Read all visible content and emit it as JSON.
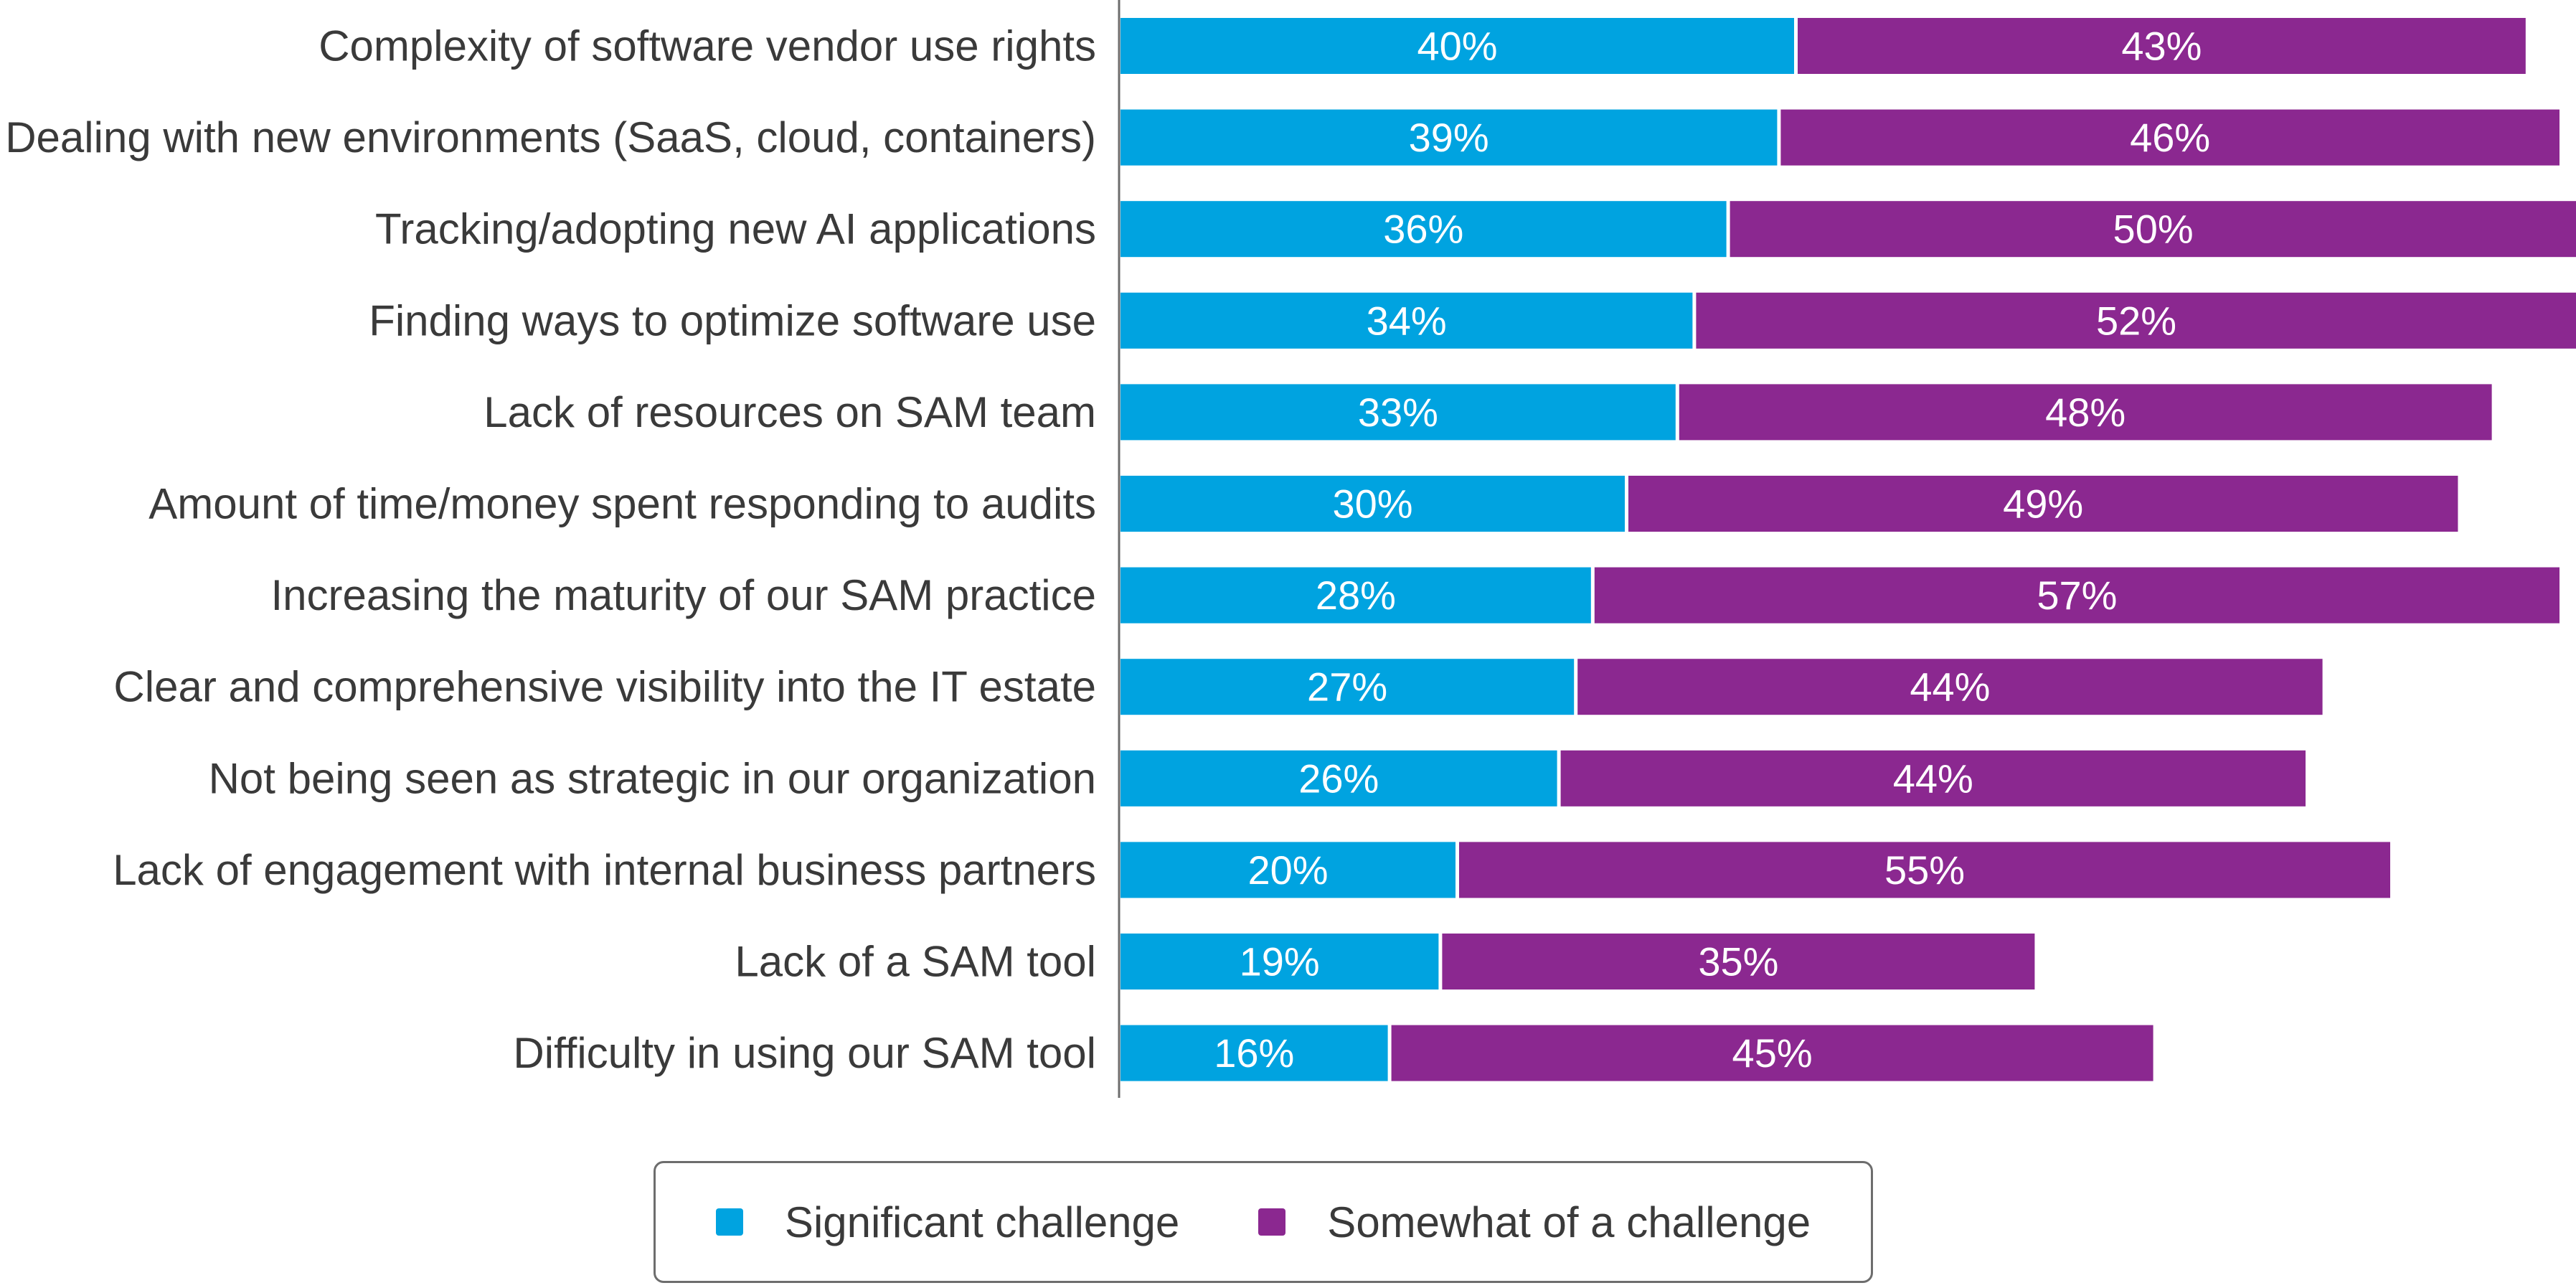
{
  "chart_data": {
    "type": "bar",
    "orientation": "horizontal",
    "stacked": true,
    "categories": [
      "Complexity of software vendor use rights",
      "Dealing with new environments (SaaS, cloud, containers)",
      "Tracking/adopting new AI applications",
      "Finding ways to optimize software use",
      "Lack of resources on SAM team",
      "Amount of time/money spent responding to audits",
      "Increasing the maturity of our SAM practice",
      "Clear and comprehensive visibility into the IT estate",
      "Not being seen as strategic in our organization",
      "Lack of engagement with internal business partners",
      "Lack of a SAM tool",
      "Difficulty in using our SAM tool"
    ],
    "series": [
      {
        "name": "Significant challenge",
        "color": "#00a3e0",
        "values": [
          40,
          39,
          36,
          34,
          33,
          30,
          28,
          27,
          26,
          20,
          19,
          16
        ],
        "labels": [
          "40%",
          "39%",
          "36%",
          "34%",
          "33%",
          "30%",
          "28%",
          "27%",
          "26%",
          "20%",
          "19%",
          "16%"
        ]
      },
      {
        "name": "Somewhat of a challenge",
        "color": "#8b2890",
        "values": [
          43,
          46,
          50,
          52,
          48,
          49,
          57,
          44,
          44,
          55,
          35,
          45
        ],
        "labels": [
          "43%",
          "46%",
          "50%",
          "52%",
          "48%",
          "49%",
          "57%",
          "44%",
          "44%",
          "55%",
          "35%",
          "45%"
        ]
      }
    ],
    "xlim": [
      0,
      86
    ],
    "grid": false,
    "legend_position": "bottom"
  }
}
